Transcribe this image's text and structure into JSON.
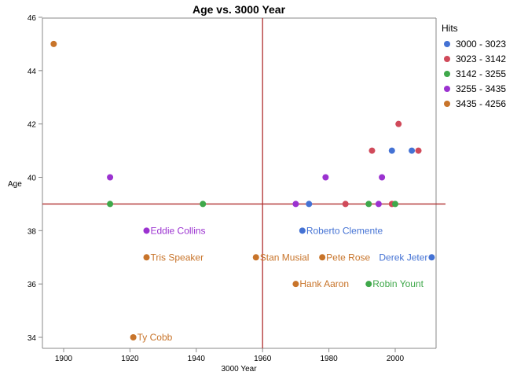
{
  "chart_data": {
    "type": "scatter",
    "title": "Age vs. 3000 Year",
    "xlabel": "3000 Year",
    "ylabel": "Age",
    "xlim": [
      1894,
      2012
    ],
    "ylim": [
      33.5,
      46
    ],
    "xticks": [
      1900,
      1920,
      1940,
      1960,
      1980,
      2000
    ],
    "yticks": [
      34,
      36,
      38,
      40,
      42,
      44,
      46
    ],
    "grid": false,
    "reference_lines": {
      "x": 1960,
      "y": 39,
      "color": "#b03030"
    },
    "legend": {
      "title": "Hits",
      "placement": "right"
    },
    "series": [
      {
        "name": "3000 - 3023",
        "color": "#4472d4",
        "points": [
          {
            "x": 1999,
            "y": 41
          },
          {
            "x": 2005,
            "y": 41
          },
          {
            "x": 1974,
            "y": 39
          },
          {
            "x": 1972,
            "y": 38,
            "label": "Roberto Clemente"
          },
          {
            "x": 2011,
            "y": 37,
            "label": "Derek Jeter",
            "label_side": "left"
          }
        ]
      },
      {
        "name": "3023 - 3142",
        "color": "#d04a5a",
        "points": [
          {
            "x": 1993,
            "y": 41
          },
          {
            "x": 2001,
            "y": 42
          },
          {
            "x": 2007,
            "y": 41
          },
          {
            "x": 1985,
            "y": 39
          },
          {
            "x": 1999,
            "y": 39
          }
        ]
      },
      {
        "name": "3142 - 3255",
        "color": "#3fa84a",
        "points": [
          {
            "x": 1914,
            "y": 39
          },
          {
            "x": 1942,
            "y": 39
          },
          {
            "x": 1992,
            "y": 39
          },
          {
            "x": 2000,
            "y": 39
          },
          {
            "x": 1992,
            "y": 36,
            "label": "Robin Yount"
          }
        ]
      },
      {
        "name": "3255 - 3435",
        "color": "#9b32d0",
        "points": [
          {
            "x": 1914,
            "y": 40
          },
          {
            "x": 1979,
            "y": 40
          },
          {
            "x": 1996,
            "y": 40
          },
          {
            "x": 1970,
            "y": 39
          },
          {
            "x": 1995,
            "y": 39
          },
          {
            "x": 1925,
            "y": 38,
            "label": "Eddie Collins"
          }
        ]
      },
      {
        "name": "3435 - 4256",
        "color": "#c8742a",
        "points": [
          {
            "x": 1897,
            "y": 45
          },
          {
            "x": 1921,
            "y": 34,
            "label": "Ty Cobb"
          },
          {
            "x": 1925,
            "y": 37,
            "label": "Tris Speaker"
          },
          {
            "x": 1958,
            "y": 37,
            "label": "Stan Musial"
          },
          {
            "x": 1978,
            "y": 37,
            "label": "Pete Rose"
          },
          {
            "x": 1970,
            "y": 36,
            "label": "Hank Aaron"
          }
        ]
      }
    ]
  }
}
